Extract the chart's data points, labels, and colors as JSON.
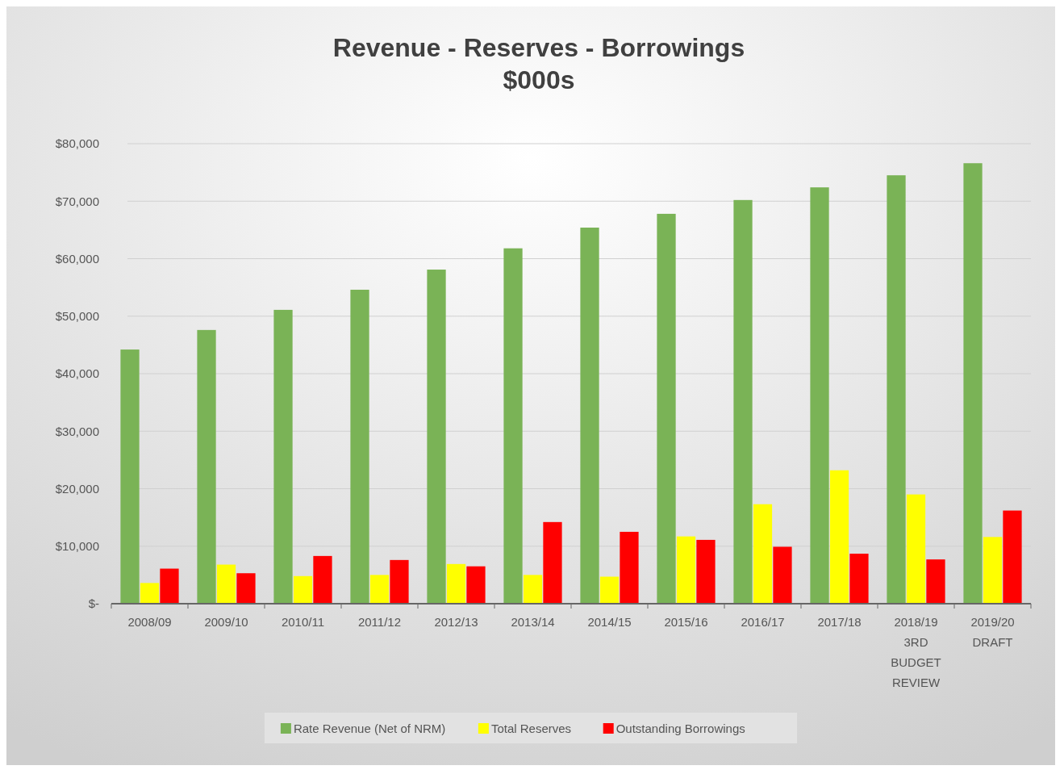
{
  "chart_data": {
    "type": "bar",
    "title": "Revenue - Reserves - Borrowings",
    "subtitle": "$000s",
    "categories": [
      "2008/09",
      "2009/10",
      "2010/11",
      "2011/12",
      "2012/13",
      "2013/14",
      "2014/15",
      "2015/16",
      "2016/17",
      "2017/18",
      "2018/19 3RD BUDGET REVIEW",
      "2019/20 DRAFT"
    ],
    "series": [
      {
        "name": "Rate Revenue (Net of NRM)",
        "color": "#7ab356",
        "values": [
          44200,
          47600,
          51100,
          54600,
          58100,
          61800,
          65400,
          67800,
          70200,
          72400,
          74500,
          76600
        ]
      },
      {
        "name": "Total Reserves",
        "color": "#ffff00",
        "values": [
          3600,
          6800,
          4800,
          5000,
          6900,
          5000,
          4700,
          11700,
          17300,
          23200,
          19000,
          11600
        ]
      },
      {
        "name": "Outstanding Borrowings",
        "color": "#ff0000",
        "values": [
          6100,
          5300,
          8300,
          7600,
          6500,
          14200,
          12500,
          11100,
          9900,
          8700,
          7700,
          16200
        ]
      }
    ],
    "ylim": [
      0,
      80000
    ],
    "yticks": [
      {
        "value": 0,
        "label": "$-"
      },
      {
        "value": 10000,
        "label": "$10,000"
      },
      {
        "value": 20000,
        "label": "$20,000"
      },
      {
        "value": 30000,
        "label": "$30,000"
      },
      {
        "value": 40000,
        "label": "$40,000"
      },
      {
        "value": 50000,
        "label": "$50,000"
      },
      {
        "value": 60000,
        "label": "$60,000"
      },
      {
        "value": 70000,
        "label": "$70,000"
      },
      {
        "value": 80000,
        "label": "$80,000"
      }
    ],
    "grid": "y",
    "legend": "bottom"
  }
}
